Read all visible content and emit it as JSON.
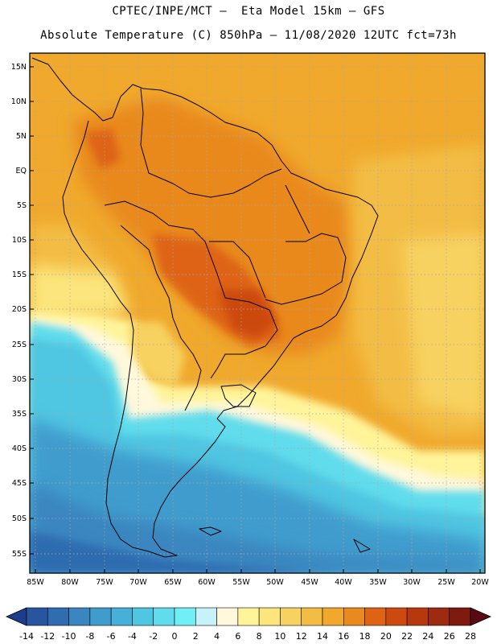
{
  "title": {
    "line1": "CPTEC/INPE/MCT –  Eta Model 15km – GFS",
    "line2": "Absolute Temperature (C) 850hPa – 11/08/2020 12UTC fct=73h"
  },
  "lat_labels": [
    "15N",
    "10N",
    "5N",
    "EQ",
    "5S",
    "10S",
    "15S",
    "20S",
    "25S",
    "30S",
    "35S",
    "40S",
    "45S",
    "50S",
    "55S"
  ],
  "lon_labels": [
    "85W",
    "80W",
    "75W",
    "70W",
    "65W",
    "60W",
    "55W",
    "50W",
    "45W",
    "40W",
    "35W",
    "30W",
    "25W",
    "20W"
  ],
  "colorbar": {
    "labels": [
      "-14",
      "-12",
      "-10",
      "-8",
      "-6",
      "-4",
      "-2",
      "0",
      "2",
      "4",
      "6",
      "8",
      "10",
      "12",
      "14",
      "16",
      "18",
      "20",
      "22",
      "24",
      "26",
      "28"
    ],
    "colors": [
      "#1e3c8c",
      "#2755a0",
      "#2f6cb0",
      "#3a86c0",
      "#3f9ccd",
      "#46b0d8",
      "#4fc6e2",
      "#60dcec",
      "#70f0f6",
      "#c8f2fa",
      "#fff8dc",
      "#fff49a",
      "#fbe57c",
      "#f7d260",
      "#f3bd44",
      "#f0a92c",
      "#e9891e",
      "#de6314",
      "#cc4a10",
      "#b8380e",
      "#9e2a10",
      "#7e1a10",
      "#5a0a14"
    ]
  },
  "map": {
    "description_colors": {
      "warm_land": "#e9891e",
      "hot_core": "#de6314",
      "ocean_north": "#f3bd44",
      "cold_south": "#4fc6e2",
      "very_cold": "#2f6cb0"
    }
  }
}
